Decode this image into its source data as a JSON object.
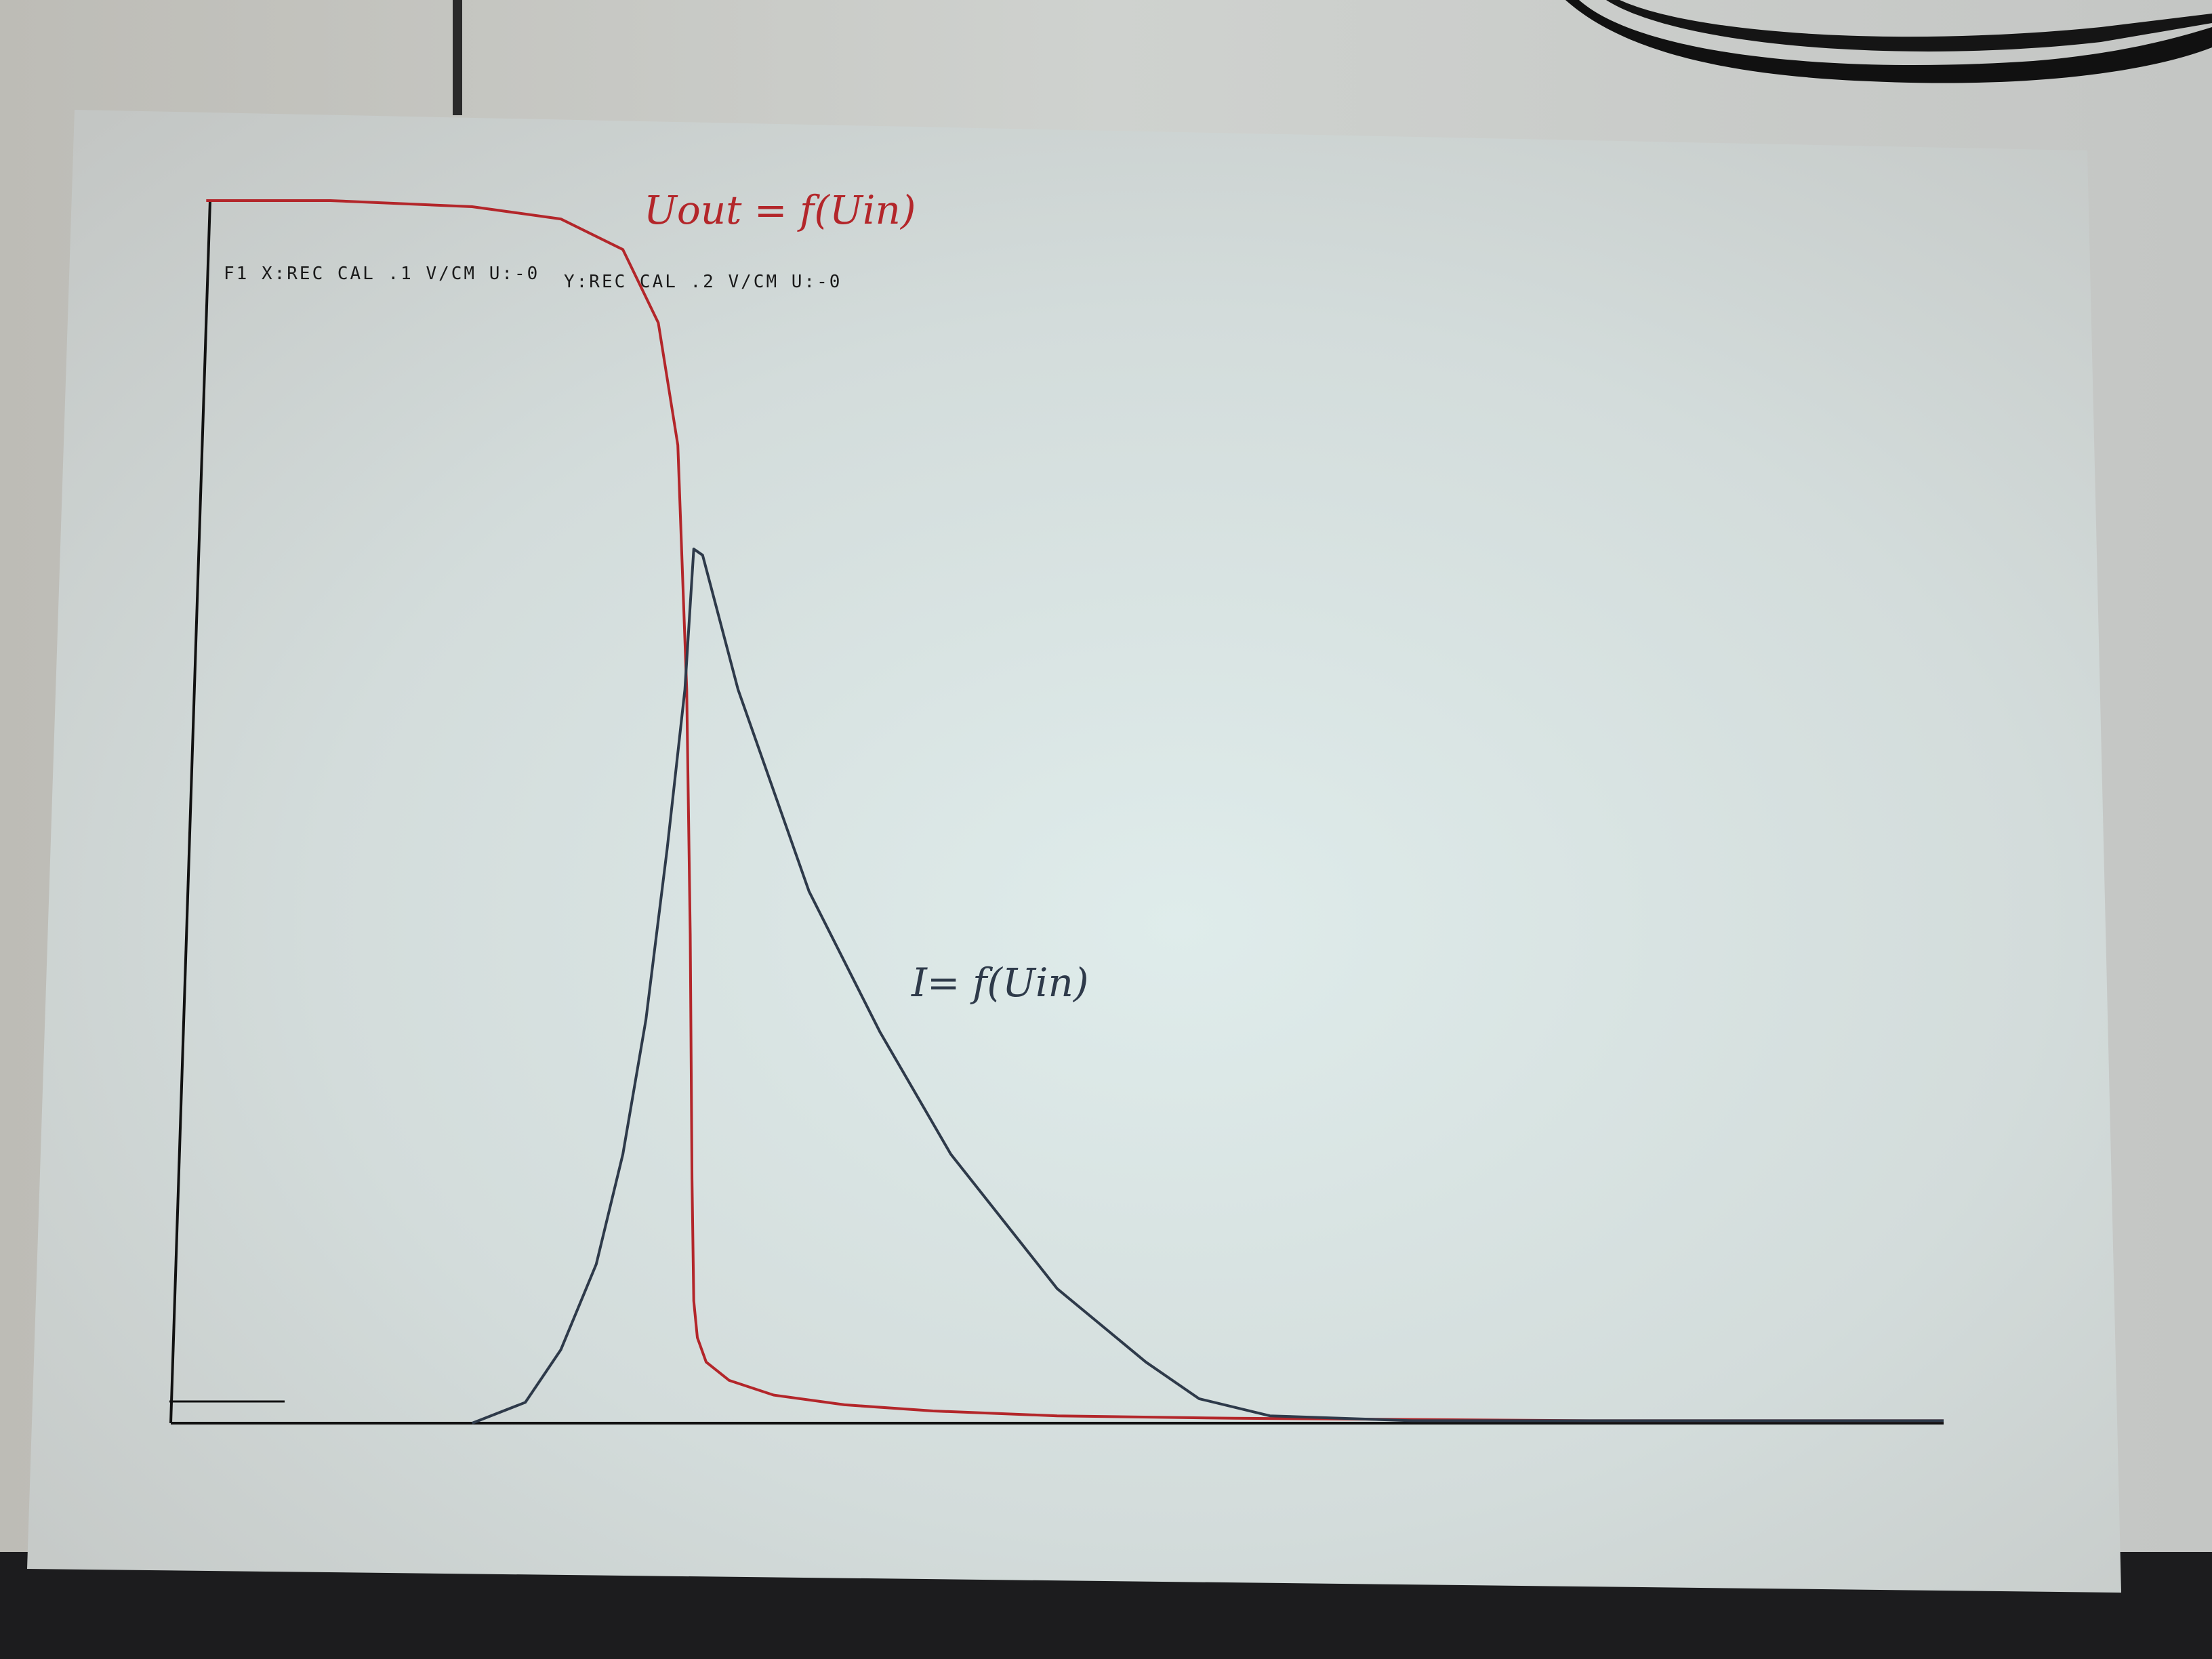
{
  "chart_data": {
    "type": "line",
    "header": {
      "x_settings": "F1 X:REC CAL  .1 V/CM U:-0",
      "y_settings": "Y:REC CAL  .2 V/CM U:-0"
    },
    "xlim": [
      0,
      1
    ],
    "ylim": [
      0,
      1
    ],
    "grid": false,
    "legend": "none",
    "series": [
      {
        "name": "Vout = f(Vin)",
        "color": "#b3262a",
        "x": [
          0.02,
          0.09,
          0.17,
          0.22,
          0.255,
          0.275,
          0.286,
          0.291,
          0.293,
          0.294,
          0.295,
          0.297,
          0.302,
          0.315,
          0.34,
          0.38,
          0.43,
          0.5,
          0.6,
          0.8,
          1.0
        ],
        "y": [
          1.0,
          1.0,
          0.995,
          0.985,
          0.96,
          0.9,
          0.8,
          0.6,
          0.4,
          0.2,
          0.1,
          0.07,
          0.05,
          0.035,
          0.023,
          0.015,
          0.01,
          0.006,
          0.004,
          0.002,
          0.002
        ]
      },
      {
        "name": "I = f(Vin)",
        "color": "#2e3a4a",
        "x": [
          0.17,
          0.2,
          0.22,
          0.24,
          0.255,
          0.268,
          0.28,
          0.29,
          0.295,
          0.3,
          0.32,
          0.36,
          0.4,
          0.44,
          0.5,
          0.55,
          0.58,
          0.62,
          0.7,
          0.8,
          1.0
        ],
        "y": [
          0.0,
          0.017,
          0.06,
          0.13,
          0.22,
          0.33,
          0.47,
          0.6,
          0.715,
          0.71,
          0.6,
          0.435,
          0.32,
          0.22,
          0.11,
          0.05,
          0.02,
          0.006,
          0.002,
          0.002,
          0.002
        ]
      }
    ],
    "annotations": [
      {
        "text": "Uout = f(Uin)",
        "color": "#b3262a",
        "near_series": "Vout = f(Vin)"
      },
      {
        "text": "I= f(Uin)",
        "color": "#2e3a4a",
        "near_series": "I = f(Vin)"
      }
    ]
  }
}
